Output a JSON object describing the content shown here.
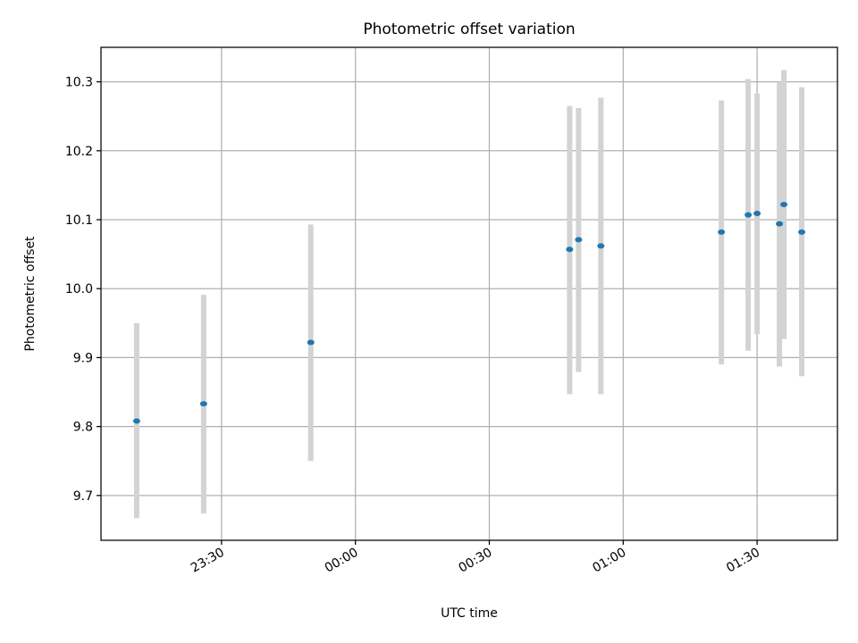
{
  "chart_data": {
    "type": "scatter",
    "title": "Photometric offset variation",
    "xlabel": "UTC time",
    "ylabel": "Photometric offset",
    "x_ticks": [
      "23:30",
      "00:00",
      "00:30",
      "01:00",
      "01:30"
    ],
    "y_ticks": [
      "9.7",
      "9.8",
      "9.9",
      "10.0",
      "10.1",
      "10.2",
      "10.3"
    ],
    "xlim": [
      "23:03",
      "01:48"
    ],
    "ylim": [
      9.635,
      10.35
    ],
    "grid": true,
    "legend": "none",
    "colors": {
      "point": "#1f77b4",
      "errorbar": "#d3d3d3",
      "grid": "#b0b0b0"
    },
    "points": [
      {
        "x": "23:11",
        "y": 9.808,
        "ylow": 9.667,
        "yhigh": 9.95
      },
      {
        "x": "23:26",
        "y": 9.833,
        "ylow": 9.674,
        "yhigh": 9.991
      },
      {
        "x": "23:50",
        "y": 9.922,
        "ylow": 9.75,
        "yhigh": 10.093
      },
      {
        "x": "00:48",
        "y": 10.057,
        "ylow": 9.847,
        "yhigh": 10.265
      },
      {
        "x": "00:50",
        "y": 10.071,
        "ylow": 9.879,
        "yhigh": 10.262
      },
      {
        "x": "00:55",
        "y": 10.062,
        "ylow": 9.847,
        "yhigh": 10.277
      },
      {
        "x": "01:22",
        "y": 10.082,
        "ylow": 9.89,
        "yhigh": 10.273
      },
      {
        "x": "01:28",
        "y": 10.107,
        "ylow": 9.91,
        "yhigh": 10.304
      },
      {
        "x": "01:30",
        "y": 10.109,
        "ylow": 9.934,
        "yhigh": 10.283
      },
      {
        "x": "01:35",
        "y": 10.094,
        "ylow": 9.887,
        "yhigh": 10.3
      },
      {
        "x": "01:36",
        "y": 10.122,
        "ylow": 9.927,
        "yhigh": 10.317
      },
      {
        "x": "01:40",
        "y": 10.082,
        "ylow": 9.873,
        "yhigh": 10.292
      }
    ]
  }
}
